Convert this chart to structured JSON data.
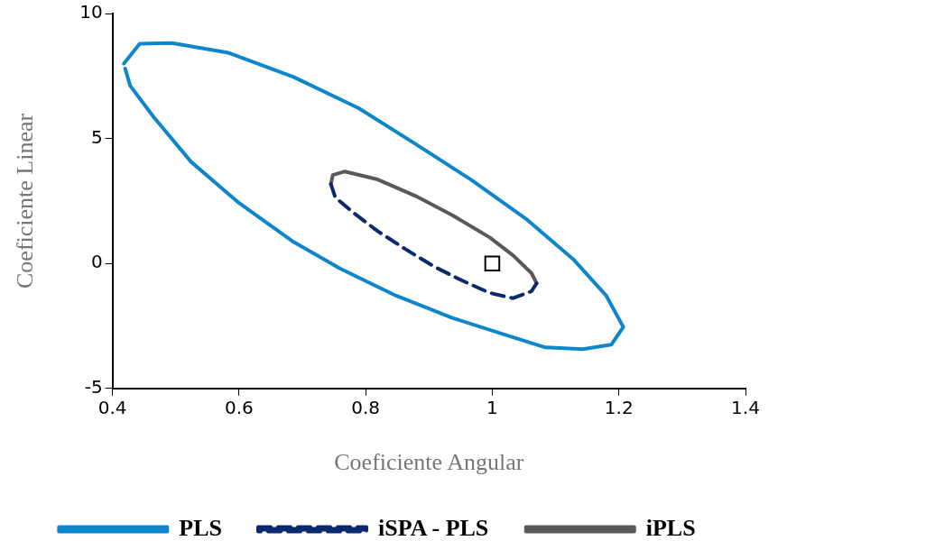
{
  "chart_data": {
    "type": "line",
    "xlabel": "Coeficiente Angular",
    "ylabel": "Coeficiente Linear",
    "xlim": [
      0.4,
      1.4
    ],
    "ylim": [
      -5,
      10
    ],
    "xticks": [
      0.4,
      0.6,
      0.8,
      1,
      1.2,
      1.4
    ],
    "yticks": [
      -5,
      0,
      5,
      10
    ],
    "grid": false,
    "legend": "bottom",
    "marker": "none",
    "series": [
      {
        "name": "PLS",
        "color": "#0e86cc",
        "line_style": "solid",
        "x": [
          0.418,
          0.443,
          0.494,
          0.583,
          0.686,
          0.789,
          0.878,
          0.966,
          1.055,
          1.129,
          1.18,
          1.207,
          1.188,
          1.143,
          1.084,
          1.025,
          0.937,
          0.848,
          0.76,
          0.686,
          0.598,
          0.524,
          0.465,
          0.428,
          0.42
        ],
        "values": [
          8.0,
          8.79,
          8.82,
          8.43,
          7.46,
          6.21,
          4.79,
          3.36,
          1.75,
          0.14,
          -1.29,
          -2.54,
          -3.25,
          -3.43,
          -3.36,
          -2.89,
          -2.18,
          -1.29,
          -0.21,
          0.86,
          2.46,
          4.07,
          5.86,
          7.11,
          7.8
        ]
      },
      {
        "name": "iSPA - PLS",
        "color": "#0b2a6e",
        "line_style": "dashed",
        "x": [
          0.745,
          0.752,
          0.782,
          0.819,
          0.863,
          0.907,
          0.952,
          0.996,
          1.033,
          1.062,
          1.07
        ],
        "values": [
          3.18,
          2.64,
          2.0,
          1.29,
          0.57,
          -0.11,
          -0.68,
          -1.18,
          -1.39,
          -1.11,
          -0.79
        ]
      },
      {
        "name": "iPLS",
        "color": "#595959",
        "line_style": "solid",
        "x": [
          0.745,
          0.748,
          0.767,
          0.819,
          0.878,
          0.937,
          0.996,
          1.033,
          1.062,
          1.07
        ],
        "values": [
          3.18,
          3.54,
          3.68,
          3.36,
          2.71,
          1.93,
          1.04,
          0.32,
          -0.39,
          -0.79
        ]
      },
      {
        "type": "scatter",
        "marker": "square",
        "color": "#000000",
        "x": [
          1
        ],
        "values": [
          0
        ]
      }
    ]
  }
}
